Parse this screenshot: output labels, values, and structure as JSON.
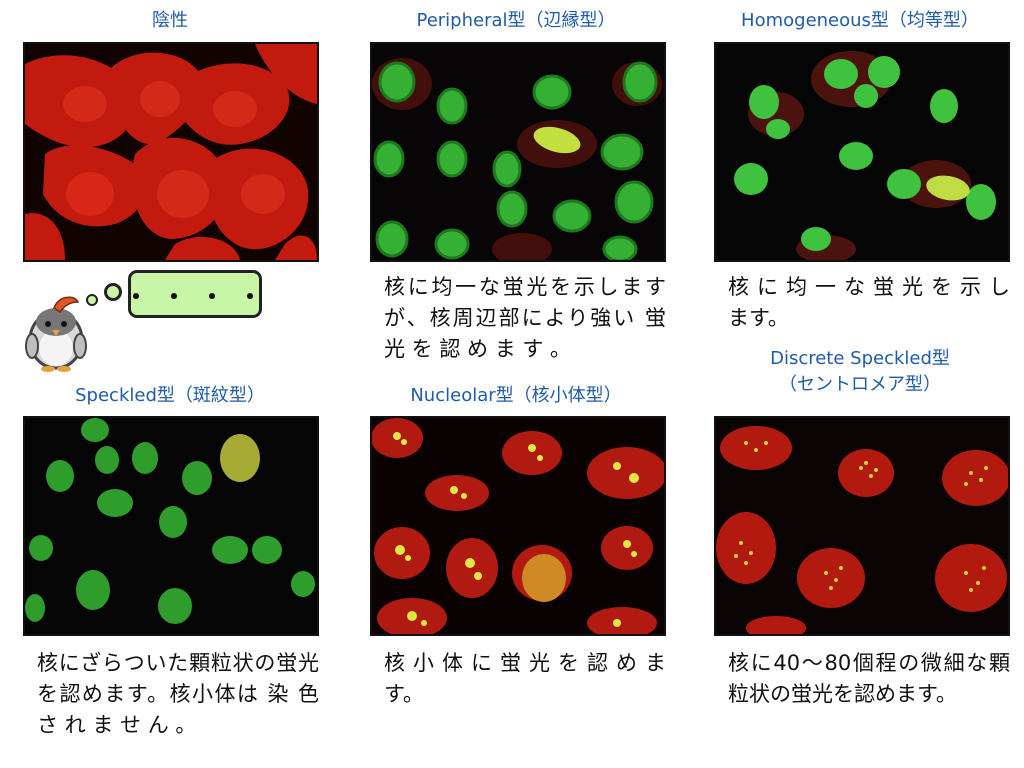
{
  "panels": [
    {
      "title": "陰性",
      "description": ""
    },
    {
      "title": "Peripheral型（辺縁型）",
      "description": "核に均一な蛍光を示しますが、核周辺部により強い 蛍 光 を 認 め ま す 。"
    },
    {
      "title": "Homogeneous型（均等型）",
      "description": "核 に 均 一 な 蛍 光 を 示 し ます。"
    },
    {
      "title": "Speckled型（斑紋型）",
      "description": "核にざらついた顆粒状の蛍光を認めます。核小体は 染 色 さ れ ま せ ん 。"
    },
    {
      "title": "Nucleolar型（核小体型）",
      "description": "核 小 体 に 蛍 光 を 認 め ます。"
    },
    {
      "title": "Discrete Speckled型\n（セントロメア型）",
      "description": "核に40～80個程の微細な顆粒状の蛍光を認めます。"
    }
  ],
  "thought_bubble": "・・・・",
  "colors": {
    "title_text": "#1f5ba8",
    "negative_cytoplasm": "#d11a0e",
    "fitc_green": "#3cc23c",
    "nucleolar_yellow": "#d7e33a",
    "bubble_fill": "#c8f5a6"
  }
}
